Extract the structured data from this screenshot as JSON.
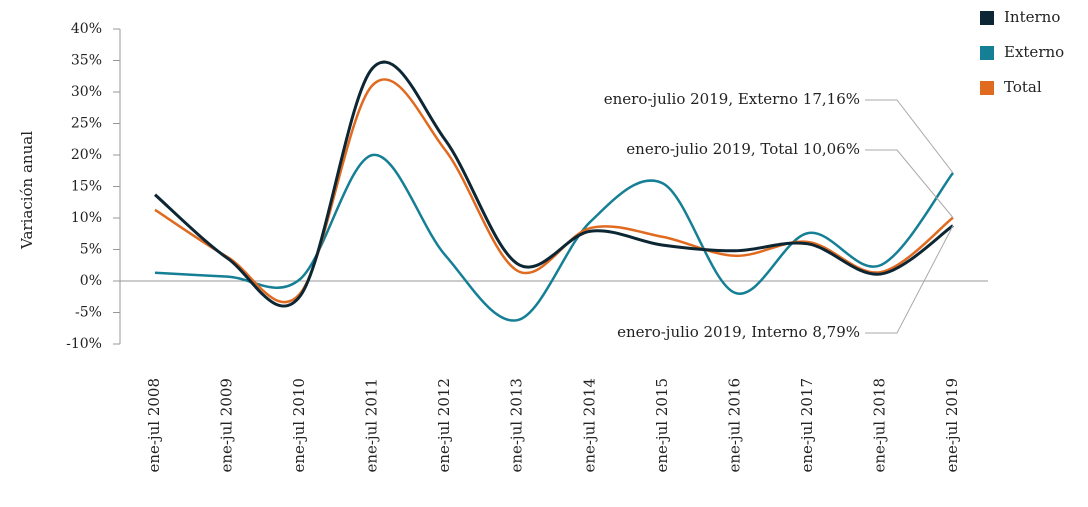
{
  "chart_data": {
    "type": "line",
    "y_label": "Variación anual",
    "categories": [
      "ene-jul 2008",
      "ene-jul 2009",
      "ene-jul 2010",
      "ene-jul 2011",
      "ene-jul 2012",
      "ene-jul 2013",
      "ene-jul 2014",
      "ene-jul 2015",
      "ene-jul 2016",
      "ene-jul 2017",
      "ene-jul 2018",
      "ene-jul 2019"
    ],
    "series": [
      {
        "name": "Interno",
        "color": "#0d2633",
        "values": [
          13.7,
          3.6,
          -2.4,
          33.8,
          22.4,
          2.7,
          7.9,
          5.7,
          4.8,
          5.9,
          1.1,
          8.79
        ]
      },
      {
        "name": "Externo",
        "color": "#157f95",
        "values": [
          1.3,
          0.7,
          0.3,
          20.0,
          4.1,
          -6.2,
          9.4,
          15.5,
          -1.9,
          7.6,
          2.5,
          17.16
        ]
      },
      {
        "name": "Total",
        "color": "#e06a1f",
        "values": [
          11.3,
          3.8,
          -2.0,
          31.1,
          20.8,
          1.6,
          8.4,
          7.0,
          4.0,
          6.2,
          1.4,
          10.06
        ]
      }
    ],
    "ylim": [
      -10,
      40
    ],
    "yticks": [
      {
        "value": -10,
        "label": "-10%"
      },
      {
        "value": -5,
        "label": "-5%"
      },
      {
        "value": 0,
        "label": "0%"
      },
      {
        "value": 5,
        "label": "5%"
      },
      {
        "value": 10,
        "label": "10%"
      },
      {
        "value": 15,
        "label": "15%"
      },
      {
        "value": 20,
        "label": "20%"
      },
      {
        "value": 25,
        "label": "25%"
      },
      {
        "value": 30,
        "label": "30%"
      },
      {
        "value": 35,
        "label": "35%"
      },
      {
        "value": 40,
        "label": "40%"
      }
    ],
    "annotations": [
      {
        "text": "enero-julio 2019, Externo 17,16%"
      },
      {
        "text": "enero-julio 2019, Total 10,06%"
      },
      {
        "text": "enero-julio 2019, Interno 8,79%"
      }
    ]
  }
}
